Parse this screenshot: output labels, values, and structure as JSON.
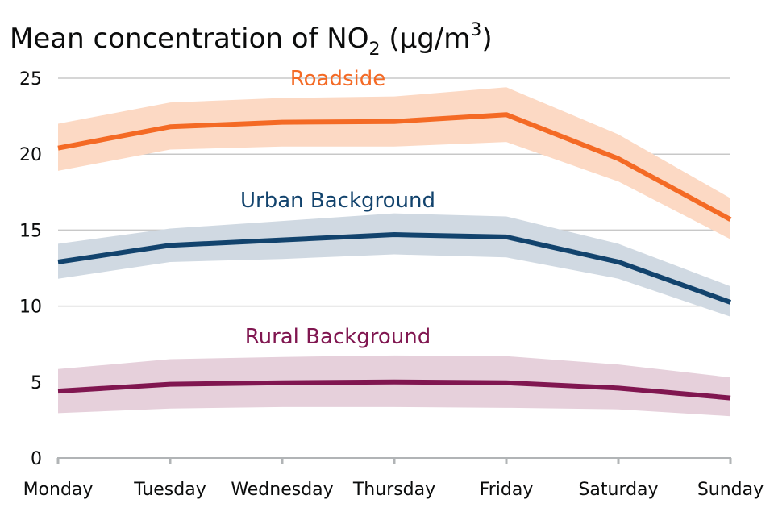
{
  "chart_data": {
    "type": "line",
    "title": "Mean concentration of NO",
    "title_subscript": "2",
    "title_unit_prefix": " (µg/m",
    "title_unit_superscript": "3",
    "title_unit_suffix": ")",
    "xlabel": "",
    "ylabel": "",
    "categories": [
      "Monday",
      "Tuesday",
      "Wednesday",
      "Thursday",
      "Friday",
      "Saturday",
      "Sunday"
    ],
    "ylim": [
      0,
      25
    ],
    "yticks": [
      "0",
      "5",
      "10",
      "15",
      "20",
      "25"
    ],
    "grid": true,
    "legend": "none",
    "series": [
      {
        "name": "Roadside",
        "color": "#f46a25",
        "band_color": "#fcd9c4",
        "values": [
          20.4,
          21.8,
          22.1,
          22.15,
          22.6,
          19.7,
          15.7
        ],
        "lower": [
          18.9,
          20.3,
          20.5,
          20.5,
          20.8,
          18.2,
          14.4
        ],
        "upper": [
          22.0,
          23.4,
          23.7,
          23.8,
          24.4,
          21.3,
          17.1
        ]
      },
      {
        "name": "Urban Background",
        "color": "#12436d",
        "band_color": "#d0d9e2",
        "values": [
          12.9,
          14.0,
          14.35,
          14.7,
          14.55,
          12.9,
          10.25
        ],
        "lower": [
          11.8,
          12.9,
          13.1,
          13.4,
          13.2,
          11.8,
          9.3
        ],
        "upper": [
          14.1,
          15.1,
          15.6,
          16.1,
          15.9,
          14.1,
          11.3
        ]
      },
      {
        "name": "Rural Background",
        "color": "#801650",
        "band_color": "#e6d0db",
        "values": [
          4.4,
          4.85,
          4.95,
          5.0,
          4.95,
          4.6,
          3.95
        ],
        "lower": [
          2.95,
          3.25,
          3.35,
          3.35,
          3.3,
          3.2,
          2.75
        ],
        "upper": [
          5.85,
          6.5,
          6.65,
          6.75,
          6.7,
          6.15,
          5.3
        ]
      }
    ]
  }
}
